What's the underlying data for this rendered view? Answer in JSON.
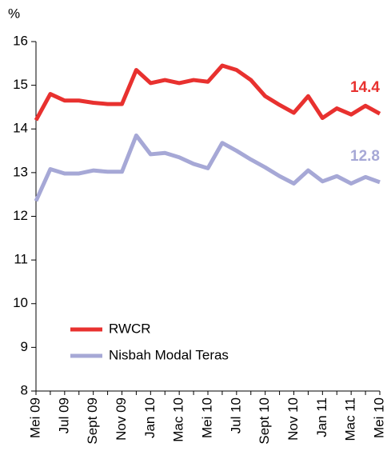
{
  "chart_data": {
    "type": "line",
    "ylabel": "%",
    "categories": [
      "Mei 09",
      null,
      "Jul 09",
      null,
      "Sept 09",
      null,
      "Nov 09",
      null,
      "Jan 10",
      null,
      "Mac 10",
      null,
      "Mei 10",
      null,
      "Jul 10",
      null,
      "Sept 10",
      null,
      "Nov 10",
      null,
      "Jan 11",
      null,
      "Mac 11",
      null,
      "Mei 10"
    ],
    "series": [
      {
        "name": "RWCR",
        "color": "#e8312f",
        "values": [
          14.2,
          14.8,
          14.65,
          14.65,
          14.6,
          14.57,
          14.57,
          15.35,
          15.05,
          15.12,
          15.05,
          15.12,
          15.08,
          15.45,
          15.35,
          15.12,
          14.75,
          14.55,
          14.37,
          14.75,
          14.25,
          14.47,
          14.33,
          14.53,
          14.35
        ]
      },
      {
        "name": "Nisbah Modal Teras",
        "color": "#a6a8d6",
        "values": [
          12.35,
          13.08,
          12.98,
          12.98,
          13.05,
          13.02,
          13.02,
          13.85,
          13.42,
          13.45,
          13.35,
          13.2,
          13.1,
          13.68,
          13.5,
          13.3,
          13.12,
          12.92,
          12.75,
          13.05,
          12.8,
          12.92,
          12.75,
          12.9,
          12.78
        ]
      }
    ],
    "annotations": [
      {
        "text": "14.4",
        "series": 0
      },
      {
        "text": "12.8",
        "series": 1
      }
    ],
    "ylim": [
      8,
      16
    ],
    "yticks": [
      8,
      9,
      10,
      11,
      12,
      13,
      14,
      15,
      16
    ],
    "legend": "lower left"
  }
}
